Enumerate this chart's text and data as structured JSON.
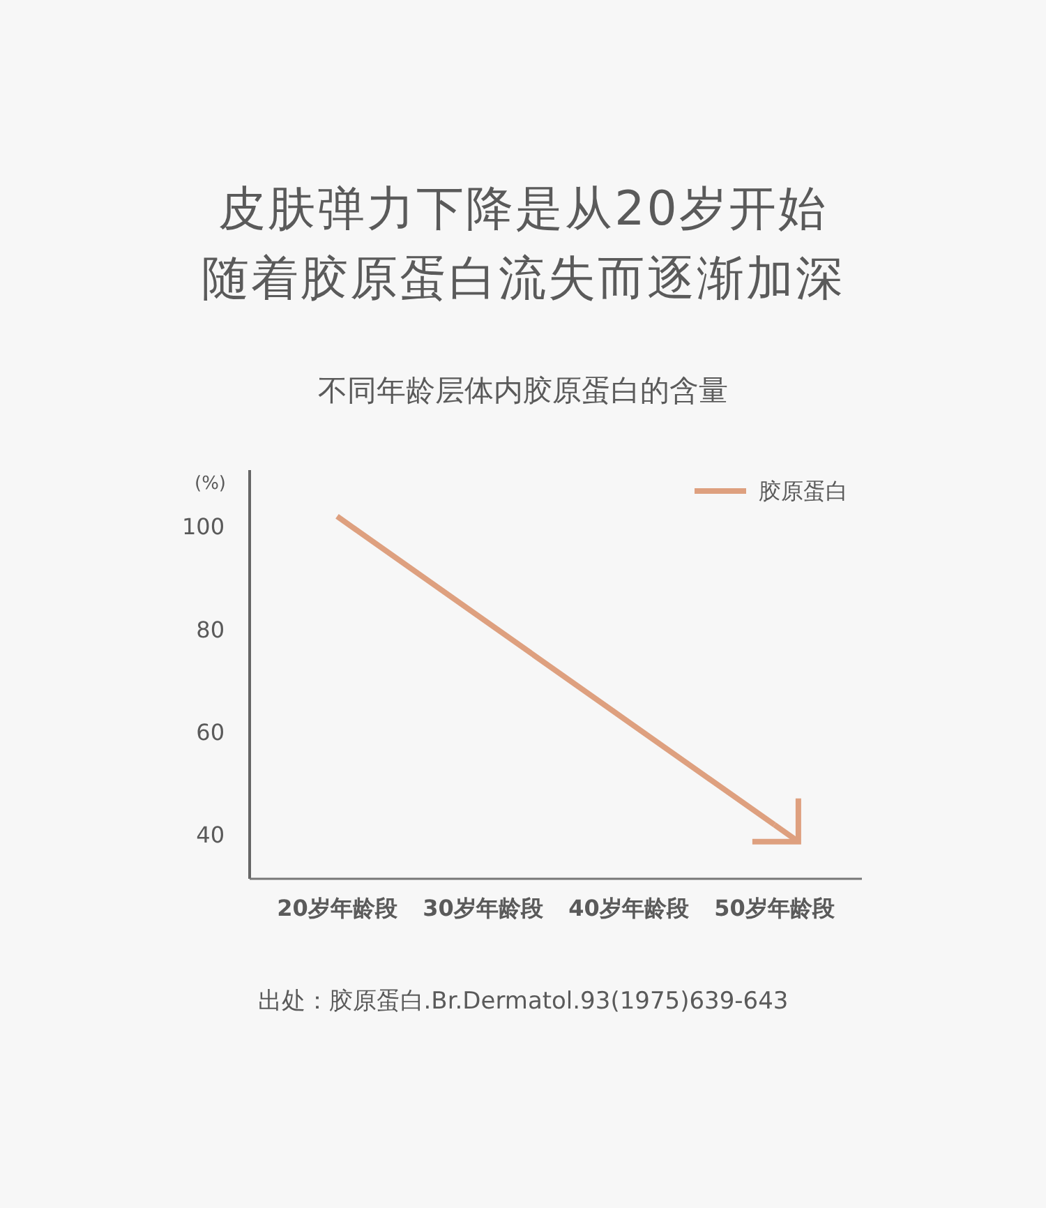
{
  "chart_data": {
    "type": "line",
    "title": "皮肤弹力下降是从20岁开始随着胶原蛋白流失而逐渐加深",
    "subtitle": "不同年龄层体内胶原蛋白的含量",
    "ylabel": "(%)",
    "categories": [
      "20岁年龄段",
      "30岁年龄段",
      "40岁年龄段",
      "50岁年龄段"
    ],
    "series": [
      {
        "name": "胶原蛋白",
        "color": "#dea07f",
        "values": [
          102,
          82,
          62,
          42
        ]
      }
    ],
    "ylim": [
      31.5,
      111
    ],
    "yticks": [
      40,
      60,
      80,
      100
    ],
    "legend": "top right",
    "annotations": [
      "出处：胶原蛋白.Br.Dermatol.93(1975)639-643"
    ]
  }
}
